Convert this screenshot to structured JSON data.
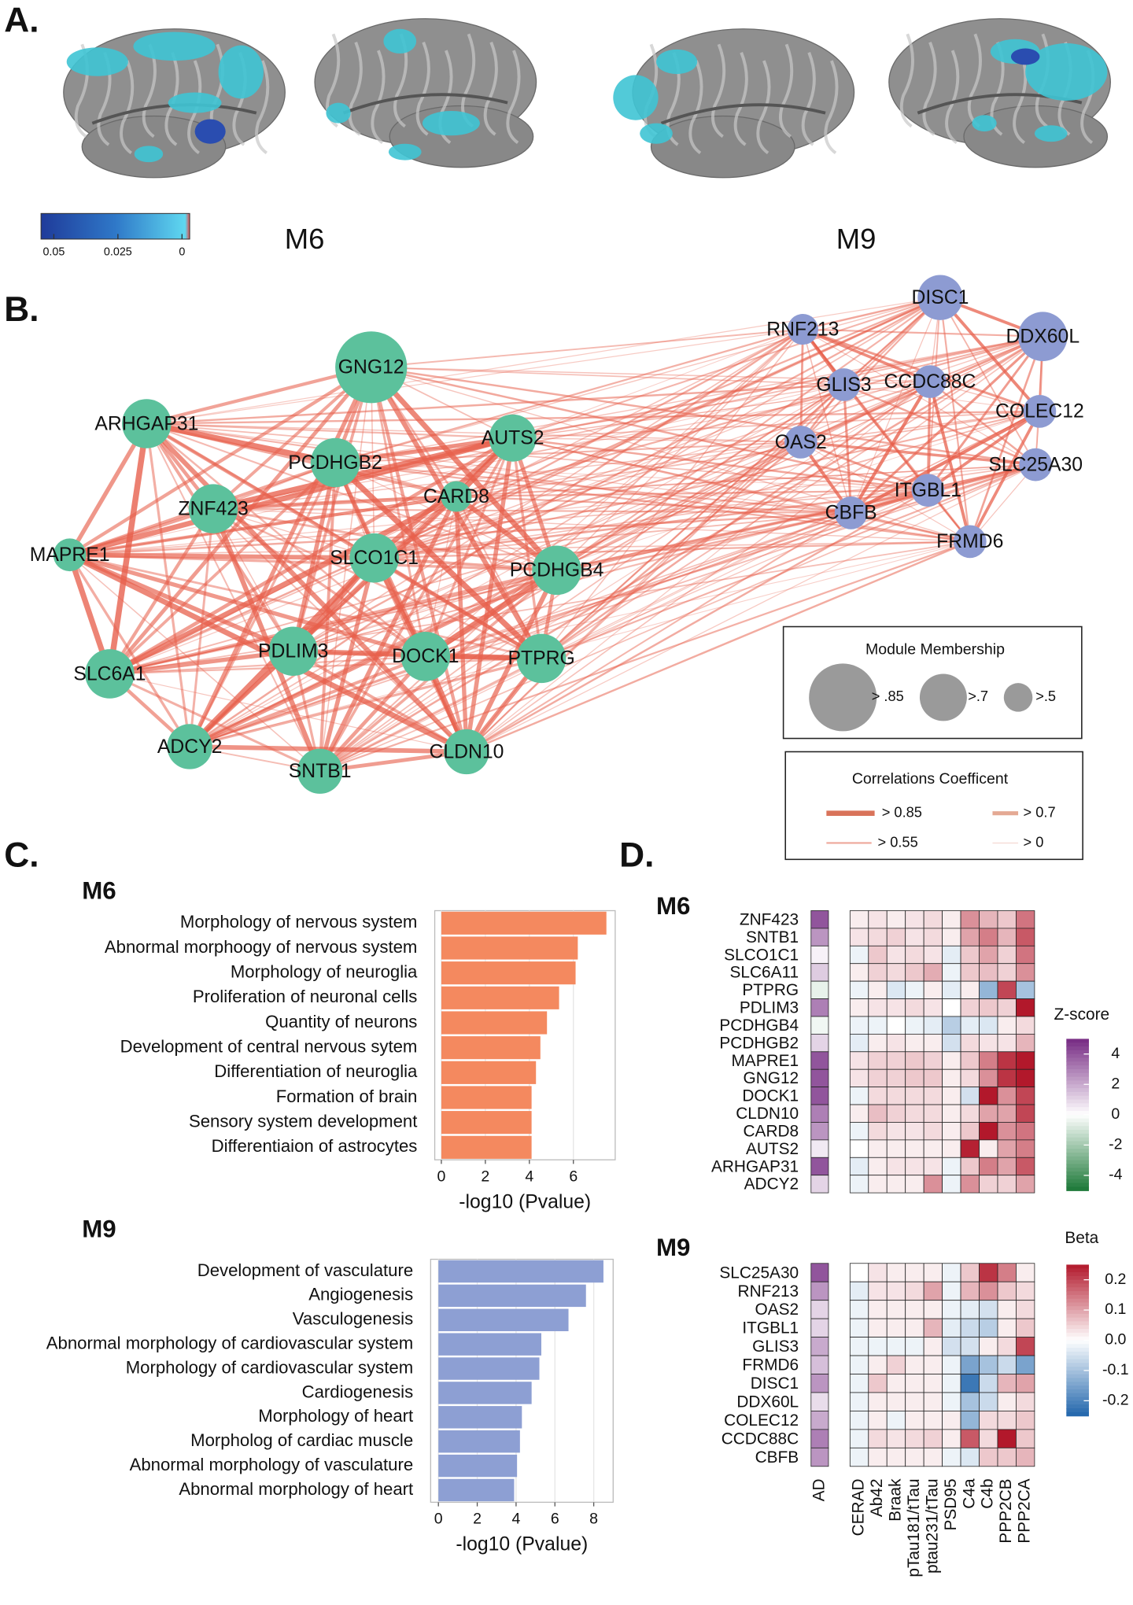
{
  "panel_labels": [
    "A.",
    "B.",
    "C.",
    "D."
  ],
  "panel_a": {
    "modules": [
      "M6",
      "M9"
    ],
    "colorbar": {
      "lim": [
        0.055,
        -0.003
      ],
      "ticks": [
        0.05,
        0.025,
        0
      ]
    }
  },
  "panel_b": {
    "groups": [
      {
        "color": "#5cc19c",
        "nodes": [
          "GNG12",
          "ARHGAP31",
          "PCDHGB2",
          "AUTS2",
          "CARD8",
          "ZNF423",
          "MAPRE1",
          "SLCO1C1",
          "PCDHGB4",
          "SLC6A1",
          "PDLIM3",
          "DOCK1",
          "PTPRG",
          "ADCY2",
          "SNTB1",
          "CLDN10"
        ]
      },
      {
        "color": "#8d9bd2",
        "nodes": [
          "DISC1",
          "RNF213",
          "DDX60L",
          "GLIS3",
          "CCDC88C",
          "COLEC12",
          "OAS2",
          "SLC25A30",
          "ITGBL1",
          "CBFB",
          "FRMD6"
        ]
      }
    ],
    "edge_color": "#e8604c",
    "membership_legend": {
      "title": "Module Membership",
      "labels": [
        "> .85",
        ">.7",
        ">.5"
      ]
    },
    "correlation_legend": {
      "title": "Correlations Coefficent",
      "labels": [
        "> 0.85",
        "> 0.7",
        "> 0.55",
        "> 0"
      ]
    }
  },
  "chart_data": [
    {
      "type": "barh",
      "title": "M6",
      "categories": [
        "Morphology of nervous system",
        "Abnormal morphoogy of nervous system",
        "Morphology of neuroglia",
        "Proliferation of neuronal cells",
        "Quantity of neurons",
        "Development of central nervous sytem",
        "Differentiation of neuroglia",
        "Formation of brain",
        "Sensory system development",
        "Differentiaion of astrocytes"
      ],
      "values": [
        7.5,
        6.2,
        6.1,
        5.35,
        4.8,
        4.5,
        4.3,
        4.1,
        4.1,
        4.1
      ],
      "color": "#f4895f",
      "xlim": [
        -0.3,
        7.9
      ],
      "xticks": [
        0,
        2,
        4,
        6
      ],
      "xlabel": "-log10 (Pvalue)",
      "grid": true
    },
    {
      "type": "barh",
      "title": "M9",
      "categories": [
        "Development of vasculature",
        "Angiogenesis",
        "Vasculogenesis",
        "Abnormal morphology of cardiovascular system",
        "Morphology of cardiovascular system",
        "Cardiogenesis",
        "Morphology of heart",
        "Morpholog of cardiac muscle",
        "Abnormal morphology of vasculature",
        "Abnormal morphology of heart"
      ],
      "values": [
        8.5,
        7.6,
        6.7,
        5.3,
        5.2,
        4.8,
        4.3,
        4.2,
        4.05,
        3.9
      ],
      "color": "#8d9fd3",
      "xlim": [
        -0.4,
        9
      ],
      "xticks": [
        0,
        2,
        4,
        6,
        8
      ],
      "xlabel": "-log10 (Pvalue)",
      "grid": true
    },
    {
      "type": "heatmap",
      "columns": [
        "CERAD",
        "Ab42",
        "Braak",
        "pTau181/tTau",
        "ptau231/tTau",
        "PSD95",
        "C4a",
        "C4b",
        "PPP2CB",
        "PPP2CA"
      ],
      "ad_label": "AD",
      "blocks": [
        {
          "title": "M6",
          "rows": [
            "ZNF423",
            "SNTB1",
            "SLCO1C1",
            "SLC6A11",
            "PTPRG",
            "PDLIM3",
            "PCDHGB4",
            "PCDHGB2",
            "MAPRE1",
            "GNG12",
            "DOCK1",
            "CLDN10",
            "CARD8",
            "AUTS2",
            "ARHGAP31",
            "ADCY2"
          ],
          "ad_values": [
            4,
            2.5,
            0.3,
            1.2,
            -0.5,
            3,
            -0.3,
            1,
            4,
            4,
            4,
            3,
            2.5,
            0.5,
            4,
            1
          ],
          "values": [
            [
              0.02,
              0.03,
              0.02,
              0.03,
              0.04,
              0.02,
              0.12,
              0.08,
              0.06,
              0.15
            ],
            [
              0.03,
              0.04,
              0.05,
              0.03,
              0.04,
              0.02,
              0.1,
              0.14,
              0.08,
              0.18
            ],
            [
              -0.02,
              0.06,
              0.03,
              0.04,
              0.03,
              -0.03,
              0.06,
              0.1,
              0.05,
              0.15
            ],
            [
              0.02,
              0.05,
              0.04,
              0.06,
              0.09,
              -0.02,
              0.06,
              0.07,
              0.05,
              0.12
            ],
            [
              -0.02,
              0.02,
              -0.04,
              -0.02,
              0.02,
              -0.03,
              0.02,
              -0.12,
              0.2,
              -0.1
            ],
            [
              0.02,
              0.03,
              0.03,
              0.04,
              0.03,
              0,
              0.05,
              0.06,
              0.05,
              0.25
            ],
            [
              -0.02,
              -0.02,
              0,
              -0.02,
              -0.03,
              -0.08,
              -0.03,
              -0.04,
              0.02,
              0.04
            ],
            [
              -0.03,
              0.02,
              0.03,
              0.02,
              0.02,
              -0.05,
              0.04,
              0.03,
              0.03,
              0.08
            ],
            [
              0.03,
              0.05,
              0.05,
              0.06,
              0.05,
              0.02,
              0.06,
              0.14,
              0.22,
              0.25
            ],
            [
              0.03,
              0.05,
              0.05,
              0.06,
              0.06,
              0.02,
              0.04,
              0.12,
              0.22,
              0.25
            ],
            [
              -0.02,
              0.04,
              0.04,
              0.04,
              0.04,
              0.02,
              -0.05,
              0.26,
              0.12,
              0.2
            ],
            [
              0.02,
              0.07,
              0.05,
              0.04,
              0.04,
              0.02,
              0.04,
              0.1,
              0.1,
              0.2
            ],
            [
              -0.02,
              0.04,
              0.03,
              0.03,
              0.04,
              0.02,
              0.06,
              0.25,
              0.12,
              0.15
            ],
            [
              0,
              0.02,
              0.02,
              0.02,
              0.02,
              0.02,
              0.24,
              0.02,
              0.1,
              0.14
            ],
            [
              -0.03,
              0.02,
              0.03,
              0.03,
              0.03,
              -0.02,
              0.06,
              0.14,
              0.1,
              0.18
            ],
            [
              -0.02,
              0.02,
              0.02,
              0.02,
              0.12,
              -0.02,
              0.12,
              0.05,
              0.05,
              0.1
            ]
          ]
        },
        {
          "title": "M9",
          "rows": [
            "SLC25A30",
            "RNF213",
            "OAS2",
            "ITGBL1",
            "GLIS3",
            "FRMD6",
            "DISC1",
            "DDX60L",
            "COLEC12",
            "CCDC88C",
            "CBFB"
          ],
          "ad_values": [
            4,
            2.5,
            1,
            1,
            2,
            1.5,
            2.5,
            0.8,
            2,
            3,
            2.5
          ],
          "values": [
            [
              0,
              0.03,
              0.02,
              0.02,
              0.02,
              -0.02,
              0.06,
              0.22,
              0.14,
              0.02
            ],
            [
              -0.03,
              0.03,
              0.03,
              0.04,
              0.1,
              -0.02,
              0.08,
              0.12,
              0.06,
              0.04
            ],
            [
              -0.02,
              0.02,
              0.02,
              0.02,
              0.02,
              -0.02,
              -0.03,
              -0.05,
              0.02,
              0.04
            ],
            [
              -0.02,
              0.02,
              0.02,
              0.02,
              0.08,
              -0.03,
              -0.06,
              -0.08,
              0.02,
              0.06
            ],
            [
              -0.02,
              -0.02,
              -0.02,
              -0.02,
              0.02,
              -0.05,
              -0.05,
              0.02,
              0.04,
              0.2
            ],
            [
              -0.02,
              0.02,
              0.05,
              0.02,
              0.02,
              -0.02,
              -0.15,
              -0.1,
              -0.06,
              -0.15
            ],
            [
              -0.02,
              0.06,
              0.02,
              0.02,
              0.02,
              -0.02,
              -0.22,
              -0.06,
              0.08,
              0.1
            ],
            [
              -0.02,
              0.02,
              0.02,
              0.02,
              0.02,
              -0.02,
              -0.1,
              -0.06,
              0.02,
              0.04
            ],
            [
              -0.02,
              0.02,
              -0.02,
              0.02,
              0.02,
              0.02,
              -0.12,
              0.04,
              0.04,
              0.06
            ],
            [
              -0.02,
              0.04,
              0.03,
              0.04,
              0.05,
              0.02,
              0.18,
              0.04,
              0.25,
              0.06
            ],
            [
              -0.02,
              0.02,
              0.02,
              0.02,
              0.02,
              -0.02,
              -0.04,
              0.06,
              0.06,
              0.08
            ]
          ]
        }
      ],
      "zscore_legend": {
        "title": "Z-score",
        "lim": [
          -5,
          5
        ],
        "ticks": [
          4,
          2,
          0,
          -2,
          -4
        ],
        "colors": [
          "#1b7837",
          "#ffffff",
          "#762a83"
        ]
      },
      "beta_legend": {
        "title": "Beta",
        "lim": [
          -0.25,
          0.25
        ],
        "ticks": [
          0.2,
          0.1,
          {
            "value": 0,
            "label": "0.0"
          },
          -0.1,
          -0.2
        ],
        "colors": [
          "#2166ac",
          "#ffffff",
          "#b2182b"
        ]
      }
    }
  ]
}
